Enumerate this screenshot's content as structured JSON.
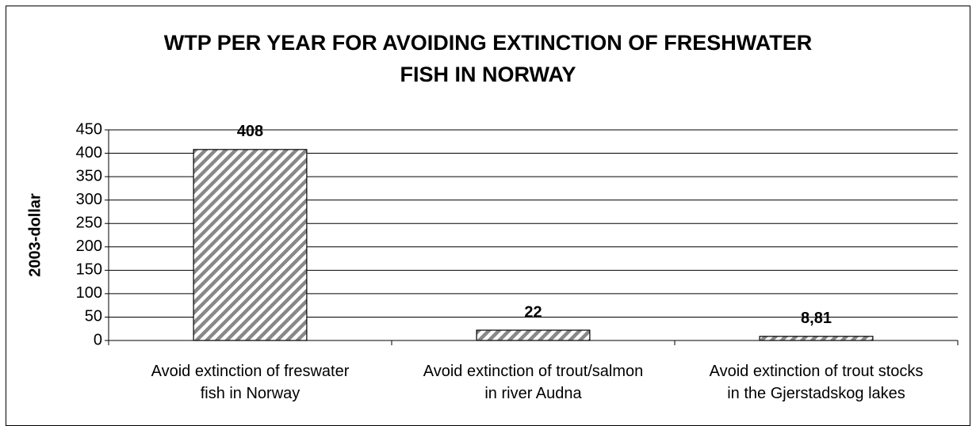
{
  "chart_data": {
    "type": "bar",
    "title": "WTP PER YEAR FOR AVOIDING EXTINCTION OF FRESHWATER\nFISH IN NORWAY",
    "y_label": "2003-dollar",
    "categories": [
      "Avoid extinction of freswater\nfish in Norway",
      "Avoid extinction of trout/salmon\nin river Audna",
      "Avoid extinction of trout stocks\nin the Gjerstadskog lakes"
    ],
    "values": [
      408,
      22,
      8.81
    ],
    "value_labels": [
      "408",
      "22",
      "8,81"
    ],
    "color": "#888888",
    "ylim": [
      0,
      450
    ],
    "yticks": [
      0,
      50,
      100,
      150,
      200,
      250,
      300,
      350,
      400,
      450
    ],
    "grid": true
  }
}
